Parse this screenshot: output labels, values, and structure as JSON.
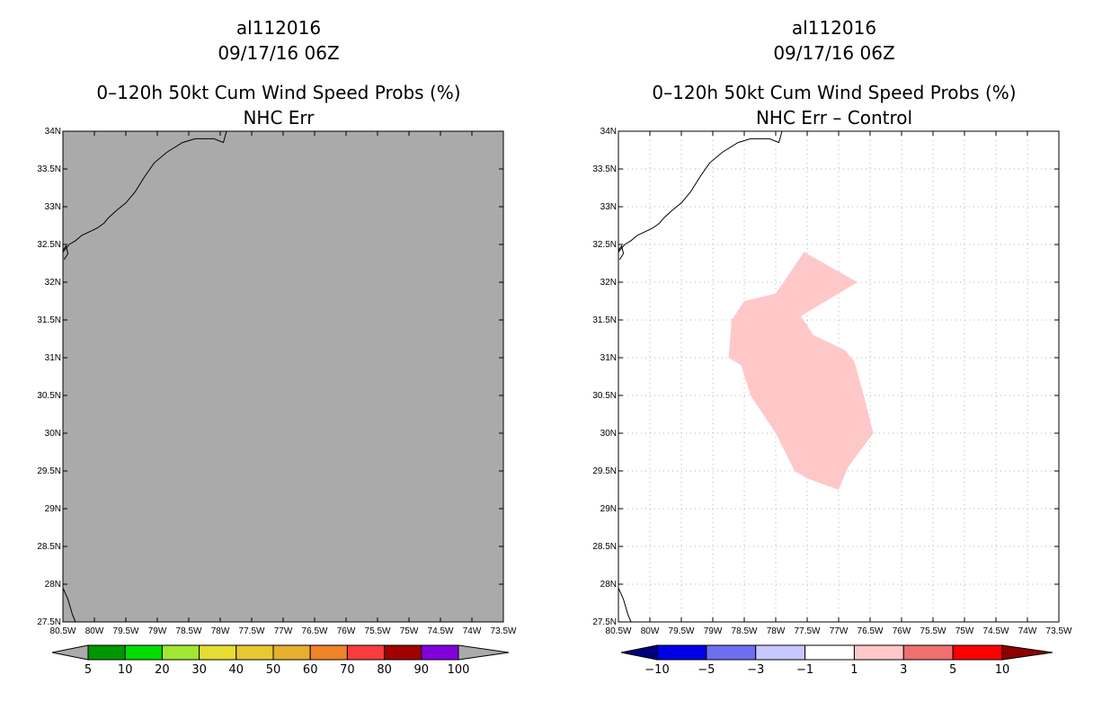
{
  "panels": [
    {
      "id": "left",
      "title_lines": [
        "al112016",
        "09/17/16 06Z",
        "0–120h 50kt Cum Wind Speed Probs (%)",
        "NHC Err"
      ],
      "map_fill": "#aaaaaa",
      "grid_lines": false,
      "colorbar": {
        "labels": [
          "5",
          "10",
          "20",
          "30",
          "40",
          "50",
          "60",
          "70",
          "80",
          "90",
          "100"
        ],
        "colors": [
          "#009600",
          "#00dc00",
          "#a0e632",
          "#e6dc32",
          "#e6c832",
          "#e6af2d",
          "#f08228",
          "#fa3c3c",
          "#a00000",
          "#8200dc"
        ],
        "end_colors": [
          "#aaaaaa",
          "#aaaaaa"
        ]
      }
    },
    {
      "id": "right",
      "title_lines": [
        "al112016",
        "09/17/16 06Z",
        "0–120h 50kt Cum Wind Speed Probs (%)",
        "NHC Err – Control"
      ],
      "map_fill": "#ffffff",
      "grid_lines": true,
      "shaded_region": {
        "color": "#ffc8c8",
        "value_range": "1 to 3",
        "lonlat": [
          [
            -77.55,
            32.4
          ],
          [
            -76.7,
            32.0
          ],
          [
            -77.6,
            31.55
          ],
          [
            -77.4,
            31.3
          ],
          [
            -76.9,
            31.1
          ],
          [
            -76.75,
            30.95
          ],
          [
            -76.6,
            30.5
          ],
          [
            -76.45,
            30.0
          ],
          [
            -76.85,
            29.55
          ],
          [
            -77.0,
            29.25
          ],
          [
            -77.5,
            29.4
          ],
          [
            -77.7,
            29.5
          ],
          [
            -78.0,
            30.0
          ],
          [
            -78.4,
            30.5
          ],
          [
            -78.55,
            30.9
          ],
          [
            -78.75,
            31.0
          ],
          [
            -78.7,
            31.5
          ],
          [
            -78.5,
            31.75
          ],
          [
            -78.0,
            31.85
          ],
          [
            -77.55,
            32.4
          ]
        ]
      },
      "colorbar": {
        "labels": [
          "−10",
          "−5",
          "−3",
          "−1",
          "1",
          "3",
          "5",
          "10"
        ],
        "colors": [
          "#0000e6",
          "#6e6ef0",
          "#c8c8ff",
          "#ffffff",
          "#ffc8c8",
          "#f07070",
          "#ff0000"
        ],
        "end_colors": [
          "#00007a",
          "#8c0000"
        ]
      }
    }
  ],
  "axes": {
    "lon_range": [
      -80.5,
      -73.5
    ],
    "lat_range": [
      27.5,
      34
    ],
    "lon_labels": [
      "80.5W",
      "80W",
      "79.5W",
      "79W",
      "78.5W",
      "78W",
      "77.5W",
      "77W",
      "76.5W",
      "76W",
      "75.5W",
      "75W",
      "74.5W",
      "74W",
      "73.5W"
    ],
    "lat_labels": [
      "27.5N",
      "28N",
      "28.5N",
      "29N",
      "29.5N",
      "30N",
      "30.5N",
      "31N",
      "31.5N",
      "32N",
      "32.5N",
      "33N",
      "33.5N",
      "34N"
    ]
  },
  "coastline": {
    "main": [
      [
        -80.5,
        32.4
      ],
      [
        -80.4,
        32.5
      ],
      [
        -80.3,
        32.55
      ],
      [
        -80.2,
        32.62
      ],
      [
        -80.05,
        32.68
      ],
      [
        -79.95,
        32.72
      ],
      [
        -79.85,
        32.78
      ],
      [
        -79.78,
        32.85
      ],
      [
        -79.65,
        32.95
      ],
      [
        -79.5,
        33.05
      ],
      [
        -79.35,
        33.2
      ],
      [
        -79.2,
        33.4
      ],
      [
        -79.05,
        33.58
      ],
      [
        -78.85,
        33.72
      ],
      [
        -78.6,
        33.85
      ],
      [
        -78.4,
        33.9
      ],
      [
        -78.1,
        33.9
      ],
      [
        -77.95,
        33.85
      ],
      [
        -77.9,
        34.0
      ]
    ],
    "south": [
      [
        -80.5,
        27.95
      ],
      [
        -80.42,
        27.8
      ],
      [
        -80.35,
        27.6
      ],
      [
        -80.3,
        27.5
      ]
    ],
    "island": [
      [
        -80.48,
        32.3
      ],
      [
        -80.42,
        32.38
      ],
      [
        -80.45,
        32.48
      ],
      [
        -80.5,
        32.42
      ]
    ]
  }
}
